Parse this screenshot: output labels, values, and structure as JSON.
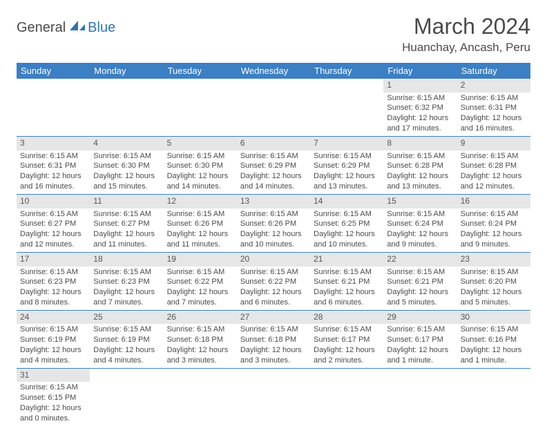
{
  "logo": {
    "part1": "General",
    "part2": "Blue"
  },
  "title": "March 2024",
  "location": "Huanchay, Ancash, Peru",
  "colors": {
    "header_bg": "#3b7fc4",
    "header_text": "#ffffff",
    "day_num_bg": "#e6e6e6",
    "border": "#3b7fc4",
    "body_text": "#4a4a4a",
    "logo_blue": "#2e74b5"
  },
  "weekdays": [
    "Sunday",
    "Monday",
    "Tuesday",
    "Wednesday",
    "Thursday",
    "Friday",
    "Saturday"
  ],
  "weeks": [
    [
      null,
      null,
      null,
      null,
      null,
      {
        "num": "1",
        "sunrise": "Sunrise: 6:15 AM",
        "sunset": "Sunset: 6:32 PM",
        "daylight": "Daylight: 12 hours and 17 minutes."
      },
      {
        "num": "2",
        "sunrise": "Sunrise: 6:15 AM",
        "sunset": "Sunset: 6:31 PM",
        "daylight": "Daylight: 12 hours and 16 minutes."
      }
    ],
    [
      {
        "num": "3",
        "sunrise": "Sunrise: 6:15 AM",
        "sunset": "Sunset: 6:31 PM",
        "daylight": "Daylight: 12 hours and 16 minutes."
      },
      {
        "num": "4",
        "sunrise": "Sunrise: 6:15 AM",
        "sunset": "Sunset: 6:30 PM",
        "daylight": "Daylight: 12 hours and 15 minutes."
      },
      {
        "num": "5",
        "sunrise": "Sunrise: 6:15 AM",
        "sunset": "Sunset: 6:30 PM",
        "daylight": "Daylight: 12 hours and 14 minutes."
      },
      {
        "num": "6",
        "sunrise": "Sunrise: 6:15 AM",
        "sunset": "Sunset: 6:29 PM",
        "daylight": "Daylight: 12 hours and 14 minutes."
      },
      {
        "num": "7",
        "sunrise": "Sunrise: 6:15 AM",
        "sunset": "Sunset: 6:29 PM",
        "daylight": "Daylight: 12 hours and 13 minutes."
      },
      {
        "num": "8",
        "sunrise": "Sunrise: 6:15 AM",
        "sunset": "Sunset: 6:28 PM",
        "daylight": "Daylight: 12 hours and 13 minutes."
      },
      {
        "num": "9",
        "sunrise": "Sunrise: 6:15 AM",
        "sunset": "Sunset: 6:28 PM",
        "daylight": "Daylight: 12 hours and 12 minutes."
      }
    ],
    [
      {
        "num": "10",
        "sunrise": "Sunrise: 6:15 AM",
        "sunset": "Sunset: 6:27 PM",
        "daylight": "Daylight: 12 hours and 12 minutes."
      },
      {
        "num": "11",
        "sunrise": "Sunrise: 6:15 AM",
        "sunset": "Sunset: 6:27 PM",
        "daylight": "Daylight: 12 hours and 11 minutes."
      },
      {
        "num": "12",
        "sunrise": "Sunrise: 6:15 AM",
        "sunset": "Sunset: 6:26 PM",
        "daylight": "Daylight: 12 hours and 11 minutes."
      },
      {
        "num": "13",
        "sunrise": "Sunrise: 6:15 AM",
        "sunset": "Sunset: 6:26 PM",
        "daylight": "Daylight: 12 hours and 10 minutes."
      },
      {
        "num": "14",
        "sunrise": "Sunrise: 6:15 AM",
        "sunset": "Sunset: 6:25 PM",
        "daylight": "Daylight: 12 hours and 10 minutes."
      },
      {
        "num": "15",
        "sunrise": "Sunrise: 6:15 AM",
        "sunset": "Sunset: 6:24 PM",
        "daylight": "Daylight: 12 hours and 9 minutes."
      },
      {
        "num": "16",
        "sunrise": "Sunrise: 6:15 AM",
        "sunset": "Sunset: 6:24 PM",
        "daylight": "Daylight: 12 hours and 9 minutes."
      }
    ],
    [
      {
        "num": "17",
        "sunrise": "Sunrise: 6:15 AM",
        "sunset": "Sunset: 6:23 PM",
        "daylight": "Daylight: 12 hours and 8 minutes."
      },
      {
        "num": "18",
        "sunrise": "Sunrise: 6:15 AM",
        "sunset": "Sunset: 6:23 PM",
        "daylight": "Daylight: 12 hours and 7 minutes."
      },
      {
        "num": "19",
        "sunrise": "Sunrise: 6:15 AM",
        "sunset": "Sunset: 6:22 PM",
        "daylight": "Daylight: 12 hours and 7 minutes."
      },
      {
        "num": "20",
        "sunrise": "Sunrise: 6:15 AM",
        "sunset": "Sunset: 6:22 PM",
        "daylight": "Daylight: 12 hours and 6 minutes."
      },
      {
        "num": "21",
        "sunrise": "Sunrise: 6:15 AM",
        "sunset": "Sunset: 6:21 PM",
        "daylight": "Daylight: 12 hours and 6 minutes."
      },
      {
        "num": "22",
        "sunrise": "Sunrise: 6:15 AM",
        "sunset": "Sunset: 6:21 PM",
        "daylight": "Daylight: 12 hours and 5 minutes."
      },
      {
        "num": "23",
        "sunrise": "Sunrise: 6:15 AM",
        "sunset": "Sunset: 6:20 PM",
        "daylight": "Daylight: 12 hours and 5 minutes."
      }
    ],
    [
      {
        "num": "24",
        "sunrise": "Sunrise: 6:15 AM",
        "sunset": "Sunset: 6:19 PM",
        "daylight": "Daylight: 12 hours and 4 minutes."
      },
      {
        "num": "25",
        "sunrise": "Sunrise: 6:15 AM",
        "sunset": "Sunset: 6:19 PM",
        "daylight": "Daylight: 12 hours and 4 minutes."
      },
      {
        "num": "26",
        "sunrise": "Sunrise: 6:15 AM",
        "sunset": "Sunset: 6:18 PM",
        "daylight": "Daylight: 12 hours and 3 minutes."
      },
      {
        "num": "27",
        "sunrise": "Sunrise: 6:15 AM",
        "sunset": "Sunset: 6:18 PM",
        "daylight": "Daylight: 12 hours and 3 minutes."
      },
      {
        "num": "28",
        "sunrise": "Sunrise: 6:15 AM",
        "sunset": "Sunset: 6:17 PM",
        "daylight": "Daylight: 12 hours and 2 minutes."
      },
      {
        "num": "29",
        "sunrise": "Sunrise: 6:15 AM",
        "sunset": "Sunset: 6:17 PM",
        "daylight": "Daylight: 12 hours and 1 minute."
      },
      {
        "num": "30",
        "sunrise": "Sunrise: 6:15 AM",
        "sunset": "Sunset: 6:16 PM",
        "daylight": "Daylight: 12 hours and 1 minute."
      }
    ],
    [
      {
        "num": "31",
        "sunrise": "Sunrise: 6:15 AM",
        "sunset": "Sunset: 6:15 PM",
        "daylight": "Daylight: 12 hours and 0 minutes."
      },
      null,
      null,
      null,
      null,
      null,
      null
    ]
  ]
}
